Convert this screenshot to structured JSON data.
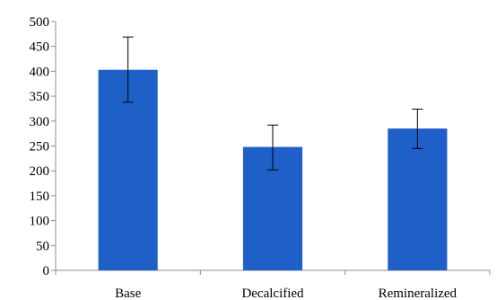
{
  "chart_data": {
    "type": "bar",
    "categories": [
      "Base",
      "Decalcified",
      "Remineralized"
    ],
    "values": [
      403,
      248,
      285
    ],
    "error_bars": [
      {
        "low": 338,
        "high": 469
      },
      {
        "low": 202,
        "high": 292
      },
      {
        "low": 245,
        "high": 324
      }
    ],
    "ylim": [
      0,
      500
    ],
    "yticks": [
      0,
      50,
      100,
      150,
      200,
      250,
      300,
      350,
      400,
      450,
      500
    ],
    "title": "",
    "xlabel": "",
    "ylabel": "",
    "grid": false,
    "bar_color": "#1F5FC8"
  }
}
